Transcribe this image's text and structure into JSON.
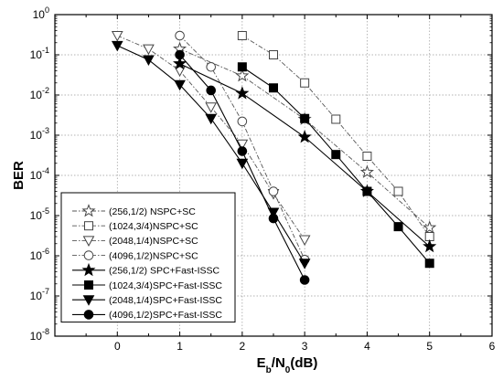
{
  "chart_data": {
    "type": "line",
    "xlabel_main": "E",
    "xlabel_sub1": "b",
    "xlabel_mid": "/N",
    "xlabel_sub2": "0",
    "xlabel_end": "(dB)",
    "ylabel": "BER",
    "xlim": [
      -1,
      6
    ],
    "ylim": [
      1e-08,
      1
    ],
    "yscale": "log",
    "x_ticks": [
      0,
      1,
      2,
      3,
      4,
      5,
      6
    ],
    "y_ticks": [
      {
        "base": "10",
        "exp": "0",
        "value": 1
      },
      {
        "base": "10",
        "exp": "-1",
        "value": 0.1
      },
      {
        "base": "10",
        "exp": "-2",
        "value": 0.01
      },
      {
        "base": "10",
        "exp": "-3",
        "value": 0.001
      },
      {
        "base": "10",
        "exp": "-4",
        "value": 0.0001
      },
      {
        "base": "10",
        "exp": "-5",
        "value": 1e-05
      },
      {
        "base": "10",
        "exp": "-6",
        "value": 1e-06
      },
      {
        "base": "10",
        "exp": "-7",
        "value": 1e-07
      },
      {
        "base": "10",
        "exp": "-8",
        "value": 1e-08
      }
    ],
    "grid": true,
    "legend_position": "bottom-left",
    "series": [
      {
        "name": "(256,1/2) NSPC+SC",
        "marker": "star-open",
        "dash": "dashdot",
        "x": [
          1,
          2,
          3,
          4,
          5
        ],
        "y": [
          0.14,
          0.03,
          0.0025,
          0.00012,
          5e-06
        ]
      },
      {
        "name": "(1024,3/4)NSPC+SC",
        "marker": "square-open",
        "dash": "dashdot",
        "x": [
          2,
          2.5,
          3,
          3.5,
          4,
          4.5,
          5
        ],
        "y": [
          0.3,
          0.1,
          0.02,
          0.0025,
          0.0003,
          4e-05,
          3e-06
        ]
      },
      {
        "name": "(2048,1/4)NSPC+SC",
        "marker": "triangle-down-open",
        "dash": "dashdot",
        "x": [
          0,
          0.5,
          1,
          1.5,
          2,
          2.5,
          3
        ],
        "y": [
          0.3,
          0.14,
          0.04,
          0.005,
          0.0006,
          3.5e-05,
          2.5e-06
        ]
      },
      {
        "name": "(4096,1/2)NSPC+SC",
        "marker": "circle-open",
        "dash": "dashdot",
        "x": [
          1,
          1.5,
          2,
          2.5,
          3
        ],
        "y": [
          0.3,
          0.05,
          0.0022,
          4e-05,
          8e-07
        ]
      },
      {
        "name": "(256,1/2) SPC+Fast-ISSC",
        "marker": "star-filled",
        "dash": "solid",
        "x": [
          1,
          2,
          3,
          4,
          5
        ],
        "y": [
          0.06,
          0.011,
          0.0009,
          4e-05,
          1.7e-06
        ]
      },
      {
        "name": "(1024,3/4)SPC+Fast-ISSC",
        "marker": "square-filled",
        "dash": "solid",
        "x": [
          2,
          2.5,
          3,
          3.5,
          4,
          4.5,
          5
        ],
        "y": [
          0.05,
          0.015,
          0.0026,
          0.00033,
          4e-05,
          5.3e-06,
          6.5e-07
        ]
      },
      {
        "name": "(2048,1/4)SPC+Fast-ISSC",
        "marker": "triangle-down-filled",
        "dash": "solid",
        "x": [
          0,
          0.5,
          1,
          1.5,
          2,
          2.5,
          3
        ],
        "y": [
          0.17,
          0.075,
          0.018,
          0.0026,
          0.0002,
          1.2e-05,
          6.5e-07
        ]
      },
      {
        "name": "(4096,1/2)SPC+Fast-ISSC",
        "marker": "circle-filled",
        "dash": "solid",
        "x": [
          1,
          1.5,
          2,
          2.5,
          3
        ],
        "y": [
          0.1,
          0.013,
          0.0004,
          8.5e-06,
          2.5e-07
        ]
      }
    ]
  }
}
